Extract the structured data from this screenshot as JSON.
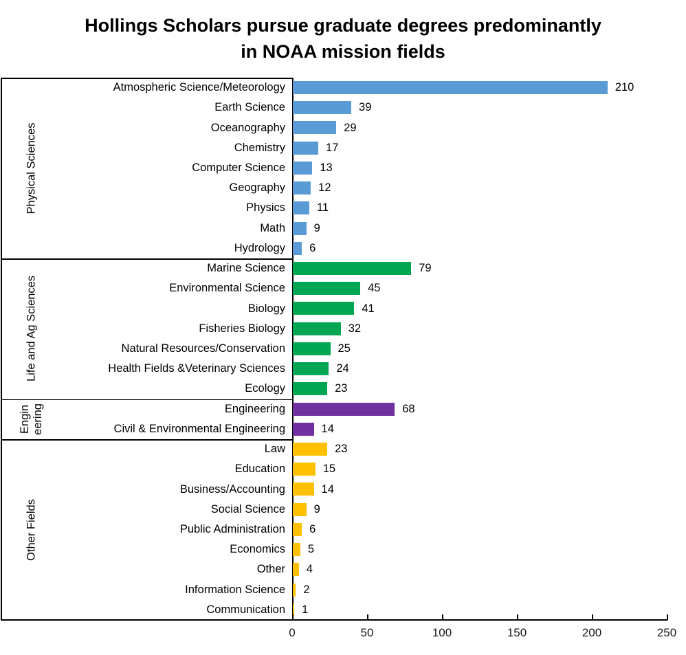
{
  "title": "Hollings Scholars pursue graduate degrees predominantly in NOAA mission fields",
  "chart_data": {
    "type": "bar",
    "orientation": "horizontal",
    "title": "Hollings Scholars pursue graduate degrees predominantly in NOAA mission fields",
    "xlabel": "",
    "ylabel": "",
    "xlim": [
      0,
      250
    ],
    "x_ticks": [
      0,
      50,
      100,
      150,
      200,
      250
    ],
    "grid": false,
    "legend": "none",
    "value_labels": "outside-end",
    "groups": [
      {
        "label": "Physical Sciences",
        "label_lines": [
          "Physical Sciences"
        ],
        "color": "#5B9BD5",
        "items": [
          {
            "label": "Atmospheric Science/Meteorology",
            "value": 210
          },
          {
            "label": "Earth Science",
            "value": 39
          },
          {
            "label": "Oceanography",
            "value": 29
          },
          {
            "label": "Chemistry",
            "value": 17
          },
          {
            "label": "Computer Science",
            "value": 13
          },
          {
            "label": "Geography",
            "value": 12
          },
          {
            "label": "Physics",
            "value": 11
          },
          {
            "label": "Math",
            "value": 9
          },
          {
            "label": "Hydrology",
            "value": 6
          }
        ]
      },
      {
        "label": "Life and Ag Sciences",
        "label_lines": [
          "Life and Ag Sciences"
        ],
        "color": "#00A651",
        "items": [
          {
            "label": "Marine Science",
            "value": 79
          },
          {
            "label": "Environmental Science",
            "value": 45
          },
          {
            "label": "Biology",
            "value": 41
          },
          {
            "label": "Fisheries Biology",
            "value": 32
          },
          {
            "label": "Natural Resources/Conservation",
            "value": 25
          },
          {
            "label": "Health Fields &Veterinary Sciences",
            "value": 24
          },
          {
            "label": "Ecology",
            "value": 23
          }
        ]
      },
      {
        "label": "Engineering",
        "label_lines": [
          "Engin",
          "eering"
        ],
        "color": "#7030A0",
        "items": [
          {
            "label": "Engineering",
            "value": 68
          },
          {
            "label": "Civil & Environmental Engineering",
            "value": 14
          }
        ]
      },
      {
        "label": "Other Fields",
        "label_lines": [
          "Other Fields"
        ],
        "color": "#FFC000",
        "items": [
          {
            "label": "Law",
            "value": 23
          },
          {
            "label": "Education",
            "value": 15
          },
          {
            "label": "Business/Accounting",
            "value": 14
          },
          {
            "label": "Social Science",
            "value": 9
          },
          {
            "label": "Public Administration",
            "value": 6
          },
          {
            "label": "Economics",
            "value": 5
          },
          {
            "label": "Other",
            "value": 4
          },
          {
            "label": "Information Science",
            "value": 2
          },
          {
            "label": "Communication",
            "value": 1
          }
        ]
      }
    ],
    "colors": {
      "physical_sciences": "#5B9BD5",
      "life_and_ag_sciences": "#00A651",
      "engineering": "#7030A0",
      "other_fields": "#FFC000",
      "axis": "#000000",
      "text": "#000000"
    }
  }
}
